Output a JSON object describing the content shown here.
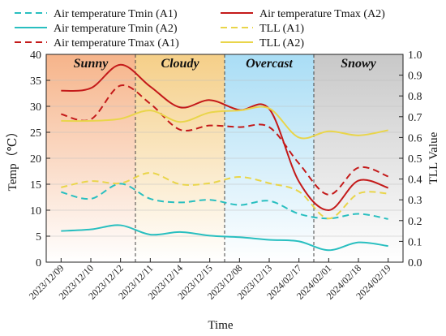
{
  "chart_data": {
    "type": "line",
    "xlabel": "Time",
    "ylabel_left": "Temp（℃）",
    "ylabel_right": "TLL Value",
    "ylim_left": [
      0,
      40
    ],
    "ylim_right": [
      0,
      1.0
    ],
    "yticks_left": [
      "0",
      "5",
      "10",
      "15",
      "20",
      "25",
      "30",
      "35",
      "40"
    ],
    "yticks_right": [
      "0.0",
      "0.1",
      "0.2",
      "0.3",
      "0.4",
      "0.5",
      "0.6",
      "0.7",
      "0.8",
      "0.9",
      "1.0"
    ],
    "categories": [
      "2023/12/09",
      "2023/12/10",
      "2023/12/12",
      "2023/12/11",
      "2023/12/14",
      "2023/12/15",
      "2023/12/08",
      "2023/12/13",
      "2024/02/17",
      "2024/02/01",
      "2024/02/18",
      "2024/02/19"
    ],
    "regions": [
      {
        "label": "Sunny",
        "start": -0.5,
        "end": 2.5,
        "color": "#f6b48a"
      },
      {
        "label": "Cloudy",
        "start": 2.5,
        "end": 5.5,
        "color": "#f5cf88"
      },
      {
        "label": "Overcast",
        "start": 5.5,
        "end": 8.5,
        "color": "#a9ddf5"
      },
      {
        "label": "Snowy",
        "start": 8.5,
        "end": 11.5,
        "color": "#c8c8c8"
      }
    ],
    "series": [
      {
        "name": "Air temperature Tmin (A1)",
        "axis": "left",
        "color": "#29bfc0",
        "dash": "dashed",
        "values": [
          13.5,
          12.2,
          15.1,
          12.2,
          11.5,
          12.0,
          11.0,
          11.8,
          9.3,
          8.4,
          9.3,
          8.3
        ]
      },
      {
        "name": "Air temperature Tmin (A2)",
        "axis": "left",
        "color": "#29bfc0",
        "dash": "solid",
        "values": [
          6.0,
          6.3,
          7.1,
          5.3,
          5.8,
          5.1,
          4.8,
          4.3,
          4.0,
          2.3,
          3.8,
          3.1
        ]
      },
      {
        "name": "Air temperature Tmax (A1)",
        "axis": "left",
        "color": "#c41a1a",
        "dash": "dashed",
        "values": [
          28.5,
          27.5,
          34.0,
          30.5,
          25.5,
          26.3,
          26.0,
          26.0,
          19.0,
          13.0,
          18.2,
          16.5
        ]
      },
      {
        "name": "Air temperature Tmax (A2)",
        "axis": "left",
        "color": "#c41a1a",
        "dash": "solid",
        "values": [
          33.0,
          33.5,
          38.0,
          33.8,
          29.8,
          31.2,
          29.3,
          29.5,
          15.5,
          10.0,
          15.7,
          14.3
        ]
      },
      {
        "name": "TLL (A1)",
        "axis": "right",
        "color": "#e9d54a",
        "dash": "dashed",
        "values": [
          0.36,
          0.39,
          0.38,
          0.43,
          0.375,
          0.38,
          0.41,
          0.38,
          0.34,
          0.21,
          0.33,
          0.33
        ]
      },
      {
        "name": "TLL (A2)",
        "axis": "right",
        "color": "#e9d54a",
        "dash": "solid",
        "values": [
          0.68,
          0.68,
          0.69,
          0.73,
          0.675,
          0.72,
          0.73,
          0.74,
          0.6,
          0.63,
          0.61,
          0.635
        ]
      }
    ]
  }
}
